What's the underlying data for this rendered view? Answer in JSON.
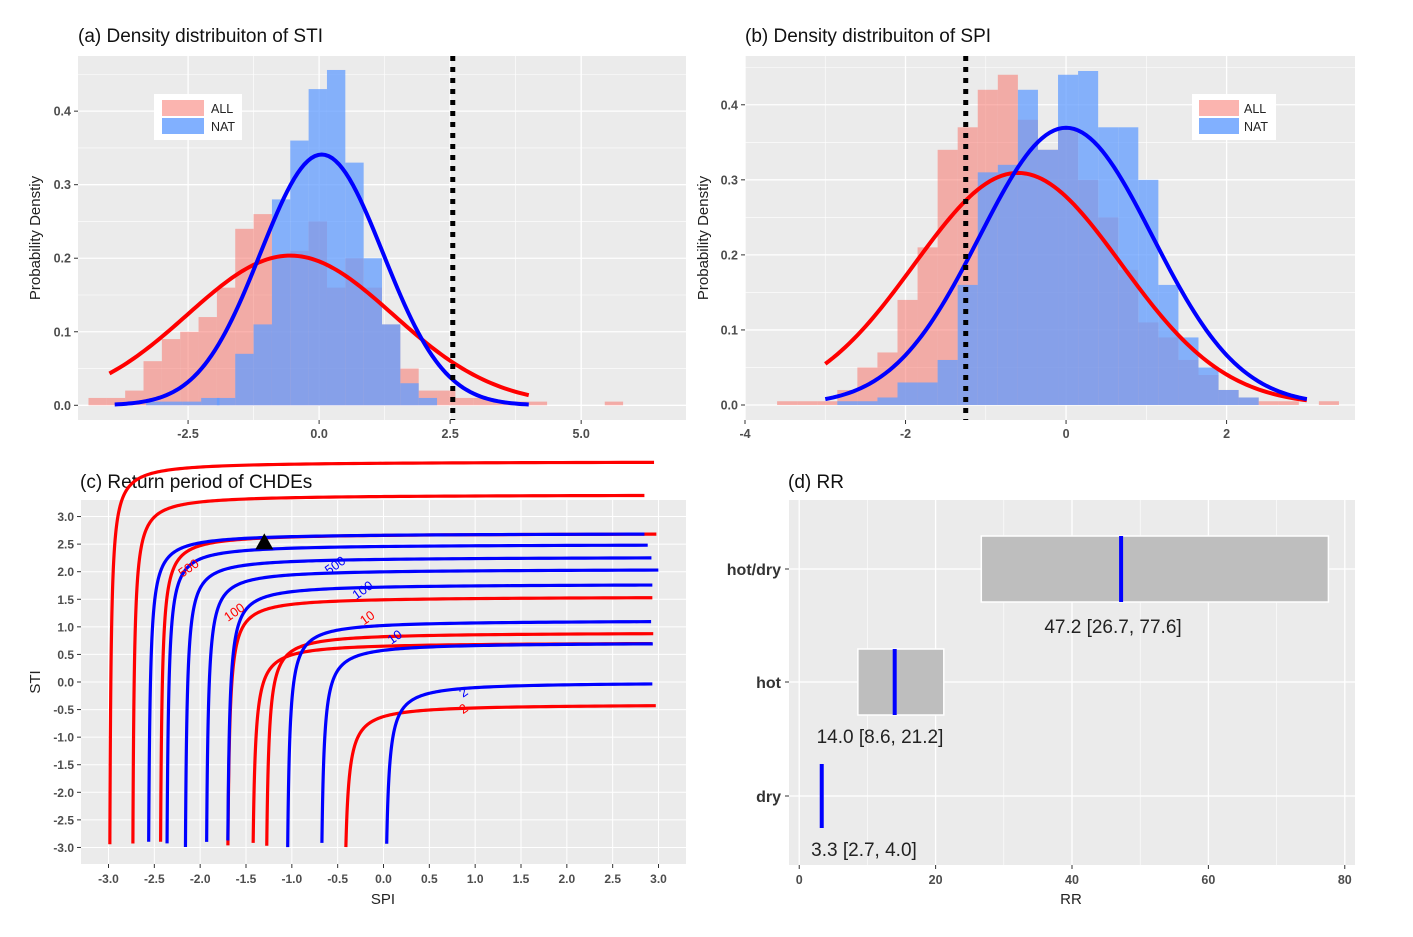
{
  "colors": {
    "panel_bg": "#ebebeb",
    "grid": "#ffffff",
    "all_bar": "#f8766d",
    "nat_bar": "#619cff",
    "all_line": "#ff0000",
    "nat_line": "#0000ff",
    "rr_box": "#bebebe"
  },
  "chart_data": [
    {
      "id": "a",
      "type": "bar",
      "title": "(a) Density distribuiton of STI",
      "ylabel": "Probability Denstiy",
      "xlabel": "",
      "xlim": [
        -4.6,
        7.0
      ],
      "ylim": [
        -0.02,
        0.475
      ],
      "xticks": [
        "-2.5",
        "0.0",
        "2.5",
        "5.0"
      ],
      "xtick_values": [
        -2.5,
        0.0,
        2.5,
        5.0
      ],
      "yticks": [
        "0.0",
        "0.1",
        "0.2",
        "0.3",
        "0.4"
      ],
      "ytick_values": [
        0.0,
        0.1,
        0.2,
        0.3,
        0.4
      ],
      "legend": {
        "position": "top-left",
        "entries": [
          "ALL",
          "NAT"
        ]
      },
      "bin_width": 0.35,
      "series": [
        {
          "name": "ALL",
          "bin_starts": [
            -4.4,
            -4.05,
            -3.7,
            -3.35,
            -3.0,
            -2.65,
            -2.3,
            -1.95,
            -1.6,
            -1.25,
            -0.9,
            -0.55,
            -0.2,
            0.15,
            0.5,
            0.85,
            1.2,
            1.55,
            1.9,
            2.25,
            2.6,
            2.95,
            3.3,
            3.65,
            4.0,
            5.45
          ],
          "values": [
            0.01,
            0.01,
            0.02,
            0.06,
            0.09,
            0.1,
            0.12,
            0.16,
            0.24,
            0.26,
            0.2,
            0.21,
            0.25,
            0.16,
            0.2,
            0.16,
            0.11,
            0.05,
            0.02,
            0.02,
            0.01,
            0.01,
            0.005,
            0.005,
            0.005,
            0.005
          ]
        },
        {
          "name": "NAT",
          "bin_starts": [
            -3.3,
            -2.95,
            -2.6,
            -2.25,
            -1.95,
            -1.6,
            -1.25,
            -0.9,
            -0.55,
            -0.2,
            0.15,
            0.5,
            0.85,
            1.2,
            1.55,
            1.9
          ],
          "values": [
            0.005,
            0.005,
            0.005,
            0.01,
            0.01,
            0.07,
            0.11,
            0.28,
            0.36,
            0.43,
            0.456,
            0.33,
            0.2,
            0.11,
            0.03,
            0.01
          ]
        }
      ],
      "fitted_curves": [
        {
          "name": "ALL",
          "mean": -0.55,
          "sd": 1.96,
          "range": [
            -4.0,
            4.0
          ]
        },
        {
          "name": "NAT",
          "mean": 0.05,
          "sd": 1.17,
          "range": [
            -3.9,
            4.0
          ]
        }
      ],
      "vline": 2.55
    },
    {
      "id": "b",
      "type": "bar",
      "title": "(b) Density distribuiton of SPI",
      "ylabel": "Probability Denstiy",
      "xlabel": "",
      "xlim": [
        -4.0,
        3.6
      ],
      "ylim": [
        -0.02,
        0.465
      ],
      "xticks": [
        "-4",
        "-2",
        "0",
        "2"
      ],
      "xtick_values": [
        -4,
        -2,
        0,
        2
      ],
      "yticks": [
        "0.0",
        "0.1",
        "0.2",
        "0.3",
        "0.4"
      ],
      "ytick_values": [
        0.0,
        0.1,
        0.2,
        0.3,
        0.4
      ],
      "legend": {
        "position": "top-right",
        "entries": [
          "ALL",
          "NAT"
        ]
      },
      "bin_width": 0.25,
      "series": [
        {
          "name": "ALL",
          "bin_starts": [
            -3.6,
            -3.35,
            -3.1,
            -2.85,
            -2.6,
            -2.35,
            -2.1,
            -1.85,
            -1.6,
            -1.35,
            -1.1,
            -0.85,
            -0.6,
            -0.35,
            -0.1,
            0.15,
            0.4,
            0.65,
            0.9,
            1.15,
            1.4,
            1.65,
            1.9,
            2.15,
            2.4,
            2.65,
            3.15
          ],
          "values": [
            0.005,
            0.005,
            0.005,
            0.02,
            0.05,
            0.07,
            0.14,
            0.21,
            0.34,
            0.37,
            0.42,
            0.44,
            0.38,
            0.34,
            0.37,
            0.3,
            0.25,
            0.18,
            0.11,
            0.09,
            0.06,
            0.04,
            0.02,
            0.01,
            0.005,
            0.005,
            0.005
          ]
        },
        {
          "name": "NAT",
          "bin_starts": [
            -2.85,
            -2.6,
            -2.35,
            -2.1,
            -1.85,
            -1.6,
            -1.35,
            -1.1,
            -0.85,
            -0.6,
            -0.35,
            -0.1,
            0.15,
            0.4,
            0.65,
            0.9,
            1.15,
            1.4,
            1.65,
            1.9,
            2.15
          ],
          "values": [
            0.005,
            0.005,
            0.01,
            0.03,
            0.03,
            0.06,
            0.16,
            0.31,
            0.32,
            0.42,
            0.34,
            0.44,
            0.445,
            0.37,
            0.37,
            0.3,
            0.16,
            0.09,
            0.05,
            0.02,
            0.01
          ]
        }
      ],
      "fitted_curves": [
        {
          "name": "ALL",
          "mean": -0.6,
          "sd": 1.29,
          "range": [
            -3.0,
            3.0
          ]
        },
        {
          "name": "NAT",
          "mean": 0.0,
          "sd": 1.08,
          "range": [
            -3.0,
            3.0
          ]
        }
      ],
      "vline": -1.25
    },
    {
      "id": "c",
      "type": "line",
      "title": "(c) Return period of CHDEs",
      "xlabel": "SPI",
      "ylabel": "STI",
      "xlim": [
        -3.3,
        3.3
      ],
      "ylim": [
        -3.3,
        3.3
      ],
      "xticks": [
        "-3.0",
        "-2.5",
        "-2.0",
        "-1.5",
        "-1.0",
        "-0.5",
        "0.0",
        "0.5",
        "1.0",
        "1.5",
        "2.0",
        "2.5",
        "3.0"
      ],
      "xtick_values": [
        -3.0,
        -2.5,
        -2.0,
        -1.5,
        -1.0,
        -0.5,
        0.0,
        0.5,
        1.0,
        1.5,
        2.0,
        2.5,
        3.0
      ],
      "yticks": [
        "3.0",
        "2.5",
        "2.0",
        "1.5",
        "1.0",
        "0.5",
        "0.0",
        "-0.5",
        "-1.0",
        "-1.5",
        "-2.0",
        "-2.5",
        "-3.0"
      ],
      "ytick_values": [
        3.0,
        2.5,
        2.0,
        1.5,
        1.0,
        0.5,
        0.0,
        -0.5,
        -1.0,
        -1.5,
        -2.0,
        -2.5,
        -3.0
      ],
      "marker": {
        "shape": "triangle",
        "x": -1.3,
        "y": 2.55
      },
      "contours": [
        {
          "group": "ALL",
          "a": -0.45,
          "b": -0.4
        },
        {
          "group": "ALL",
          "a": -1.3,
          "b": 0.9
        },
        {
          "group": "ALL",
          "a": -1.72,
          "b": 1.55
        },
        {
          "group": "ALL",
          "a": -2.45,
          "b": 2.7
        },
        {
          "group": "ALL",
          "a": -2.75,
          "b": 3.4
        },
        {
          "group": "ALL",
          "a": -3.0,
          "b": 4.0
        },
        {
          "group": "ALL",
          "a": -1.45,
          "b": 0.72
        },
        {
          "group": "NAT",
          "a": 0.0,
          "b": 0.0
        },
        {
          "group": "NAT",
          "a": -0.7,
          "b": 0.72
        },
        {
          "group": "NAT",
          "a": -1.07,
          "b": 1.12
        },
        {
          "group": "NAT",
          "a": -1.72,
          "b": 1.78
        },
        {
          "group": "NAT",
          "a": -1.95,
          "b": 2.05
        },
        {
          "group": "NAT",
          "a": -2.18,
          "b": 2.27
        },
        {
          "group": "NAT",
          "a": -2.38,
          "b": 2.5
        },
        {
          "group": "NAT",
          "a": -2.58,
          "b": 2.7
        }
      ],
      "contour_labels": [
        {
          "text": "500",
          "group": "ALL",
          "x": -2.1,
          "y": 2.0
        },
        {
          "text": "100",
          "group": "ALL",
          "x": -1.6,
          "y": 1.2
        },
        {
          "text": "10",
          "group": "ALL",
          "x": -0.15,
          "y": 1.1
        },
        {
          "text": "2",
          "group": "ALL",
          "x": 0.9,
          "y": -0.55
        },
        {
          "text": "500",
          "group": "NAT",
          "x": -0.5,
          "y": 2.05
        },
        {
          "text": "100",
          "group": "NAT",
          "x": -0.2,
          "y": 1.6
        },
        {
          "text": "10",
          "group": "NAT",
          "x": 0.15,
          "y": 0.75
        },
        {
          "text": "2",
          "group": "NAT",
          "x": 0.9,
          "y": -0.25
        }
      ]
    },
    {
      "id": "d",
      "type": "bar",
      "title": "(d) RR",
      "xlabel": "RR",
      "ylabel": "",
      "xlim": [
        -1.5,
        81.5
      ],
      "xticks": [
        "0",
        "20",
        "40",
        "60",
        "80"
      ],
      "xtick_values": [
        0,
        20,
        40,
        60,
        80
      ],
      "categories": [
        "hot/dry",
        "hot",
        "dry"
      ],
      "values": [
        47.2,
        14.0,
        3.3
      ],
      "lower": [
        26.7,
        8.6,
        2.7
      ],
      "upper": [
        77.6,
        21.2,
        4.0
      ],
      "labels": [
        "47.2 [26.7, 77.6]",
        "14.0 [8.6, 21.2]",
        "3.3 [2.7, 4.0]"
      ]
    }
  ]
}
